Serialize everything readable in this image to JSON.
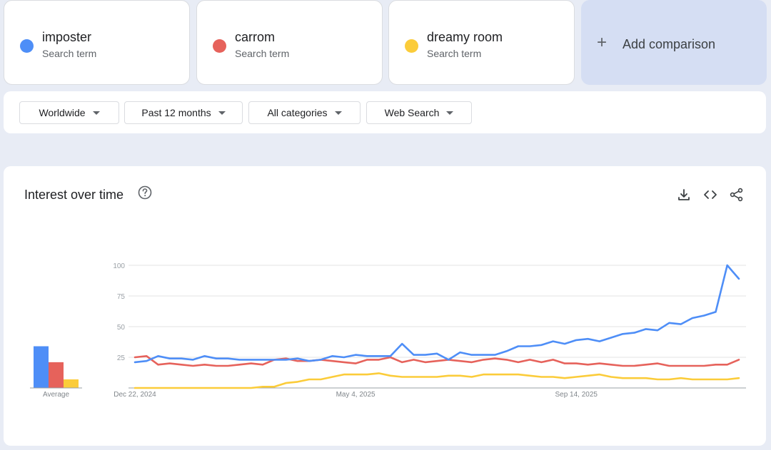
{
  "terms": [
    {
      "name": "imposter",
      "subtitle": "Search term",
      "color": "#4e8ef7"
    },
    {
      "name": "carrom",
      "subtitle": "Search term",
      "color": "#e6625b"
    },
    {
      "name": "dreamy room",
      "subtitle": "Search term",
      "color": "#fbcc3a"
    }
  ],
  "add_comparison": {
    "icon": "plus-icon",
    "label": "Add comparison"
  },
  "filters": {
    "region": "Worldwide",
    "time_range": "Past 12 months",
    "category": "All categories",
    "search_type": "Web Search"
  },
  "panel": {
    "title": "Interest over time",
    "icons": [
      "help-icon",
      "download-icon",
      "embed-icon",
      "share-icon"
    ]
  },
  "chart_data": {
    "type": "line",
    "ylim": [
      0,
      100
    ],
    "yticks": [
      25,
      50,
      75,
      100
    ],
    "xtick_labels": [
      "Dec 22, 2024",
      "May 4, 2025",
      "Sep 14, 2025"
    ],
    "xtick_weeks": [
      0,
      19,
      38
    ],
    "x_step": "weekly",
    "series": [
      {
        "name": "imposter",
        "color": "#4e8ef7",
        "values": [
          21,
          22,
          26,
          24,
          24,
          23,
          26,
          24,
          24,
          23,
          23,
          23,
          23,
          23,
          24,
          22,
          23,
          26,
          25,
          27,
          26,
          26,
          26,
          36,
          27,
          27,
          28,
          23,
          29,
          27,
          27,
          27,
          30,
          34,
          34,
          35,
          38,
          36,
          39,
          40,
          38,
          41,
          44,
          45,
          48,
          47,
          53,
          52,
          57,
          59,
          62,
          100,
          89
        ]
      },
      {
        "name": "carrom",
        "color": "#e6625b",
        "values": [
          25,
          26,
          19,
          20,
          19,
          18,
          19,
          18,
          18,
          19,
          20,
          19,
          23,
          24,
          22,
          22,
          23,
          22,
          21,
          20,
          23,
          23,
          25,
          21,
          23,
          21,
          22,
          23,
          22,
          21,
          23,
          24,
          23,
          21,
          23,
          21,
          23,
          20,
          20,
          19,
          20,
          19,
          18,
          18,
          19,
          20,
          18,
          18,
          18,
          18,
          19,
          19,
          23
        ]
      },
      {
        "name": "dreamy room",
        "color": "#fbcc3a",
        "values": [
          0,
          0,
          0,
          0,
          0,
          0,
          0,
          0,
          0,
          0,
          0,
          1,
          1,
          4,
          5,
          7,
          7,
          9,
          11,
          11,
          11,
          12,
          10,
          9,
          9,
          9,
          9,
          10,
          10,
          9,
          11,
          11,
          11,
          11,
          10,
          9,
          9,
          8,
          9,
          10,
          11,
          9,
          8,
          8,
          8,
          7,
          7,
          8,
          7,
          7,
          7,
          7,
          8
        ]
      }
    ],
    "average": {
      "label": "Average",
      "values": [
        34,
        21,
        7
      ]
    }
  }
}
